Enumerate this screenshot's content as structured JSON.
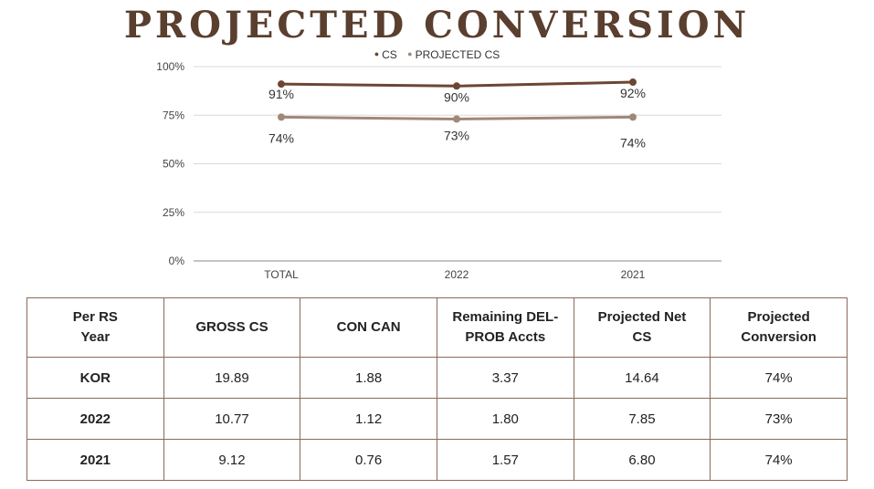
{
  "title": "PROJECTED CONVERSION",
  "colors": {
    "cs": "#6b4633",
    "projected_cs": "#a08878",
    "title": "#5a3e2e",
    "grid": "#d9d9d9"
  },
  "chart_data": {
    "type": "line",
    "categories": [
      "TOTAL",
      "2022",
      "2021"
    ],
    "series": [
      {
        "name": "CS",
        "values": [
          91,
          90,
          92
        ],
        "labels": [
          "91%",
          "90%",
          "92%"
        ]
      },
      {
        "name": "PROJECTED CS",
        "values": [
          74,
          73,
          74
        ],
        "labels": [
          "74%",
          "73%",
          "74%"
        ]
      }
    ],
    "ylim": [
      0,
      100
    ],
    "yticks": [
      0,
      25,
      50,
      75,
      100
    ],
    "ytick_labels": [
      "0%",
      "25%",
      "50%",
      "75%",
      "100%"
    ],
    "grid": true,
    "legend": "top"
  },
  "table": {
    "headers": [
      [
        "Per RS",
        "Year"
      ],
      [
        "GROSS CS"
      ],
      [
        "CON CAN"
      ],
      [
        "Remaining DEL-",
        "PROB Accts"
      ],
      [
        "Projected Net",
        "CS"
      ],
      [
        "Projected",
        "Conversion"
      ]
    ],
    "rows": [
      [
        "KOR",
        "19.89",
        "1.88",
        "3.37",
        "14.64",
        "74%"
      ],
      [
        "2022",
        "10.77",
        "1.12",
        "1.80",
        "7.85",
        "73%"
      ],
      [
        "2021",
        "9.12",
        "0.76",
        "1.57",
        "6.80",
        "74%"
      ]
    ]
  }
}
